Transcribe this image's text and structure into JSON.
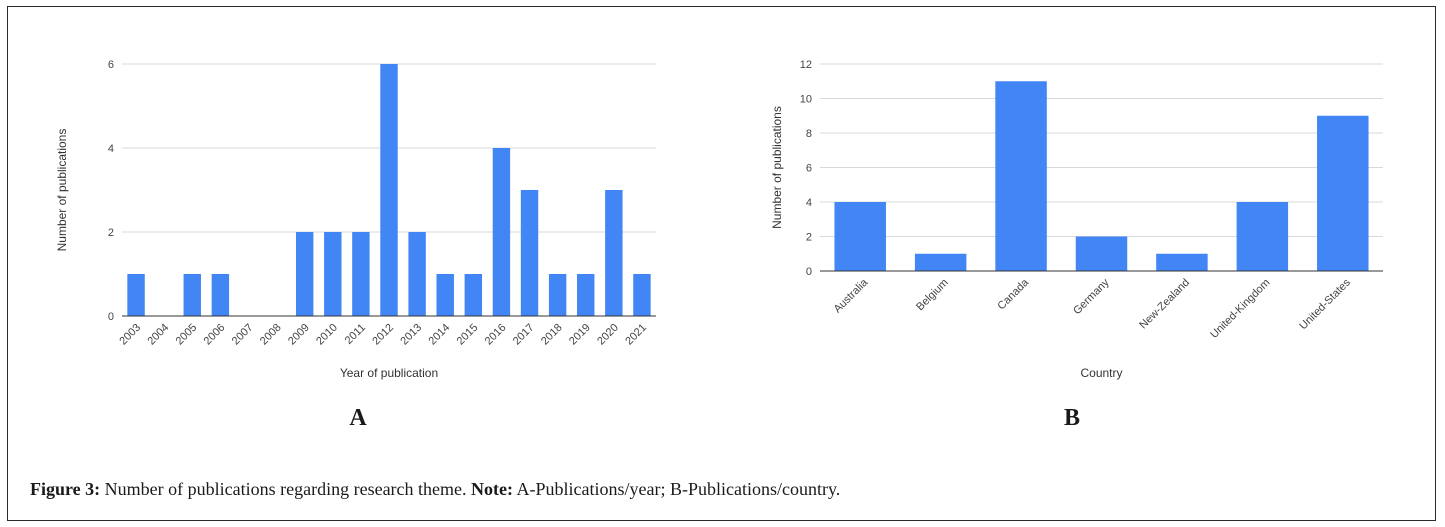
{
  "chart_data": [
    {
      "type": "bar",
      "panel": "A",
      "categories": [
        "2003",
        "2004",
        "2005",
        "2006",
        "2007",
        "2008",
        "2009",
        "2010",
        "2011",
        "2012",
        "2013",
        "2014",
        "2015",
        "2016",
        "2017",
        "2018",
        "2019",
        "2020",
        "2021"
      ],
      "values": [
        1,
        0,
        1,
        1,
        0,
        0,
        2,
        2,
        2,
        6,
        2,
        1,
        1,
        4,
        3,
        1,
        1,
        3,
        1
      ],
      "xlabel": "Year of publication",
      "ylabel": "Number of publications",
      "ylim": [
        0,
        6
      ],
      "yticks": [
        0,
        2,
        4,
        6
      ],
      "color": "#4285f4",
      "grid": true
    },
    {
      "type": "bar",
      "panel": "B",
      "categories": [
        "Australia",
        "Belgium",
        "Canada",
        "Germany",
        "New-Zealand",
        "United-Kingdom",
        "United-States"
      ],
      "values": [
        4,
        1,
        11,
        2,
        1,
        4,
        9
      ],
      "xlabel": "Country",
      "ylabel": "Number of publications",
      "ylim": [
        0,
        12
      ],
      "yticks": [
        0,
        2,
        4,
        6,
        8,
        10,
        12
      ],
      "color": "#4285f4",
      "grid": true
    }
  ],
  "caption": {
    "figure_label": "Figure 3:",
    "text": " Number of publications regarding research theme. ",
    "note_label": "Note:",
    "note_text": " A-Publications/year; B-Publications/country."
  }
}
